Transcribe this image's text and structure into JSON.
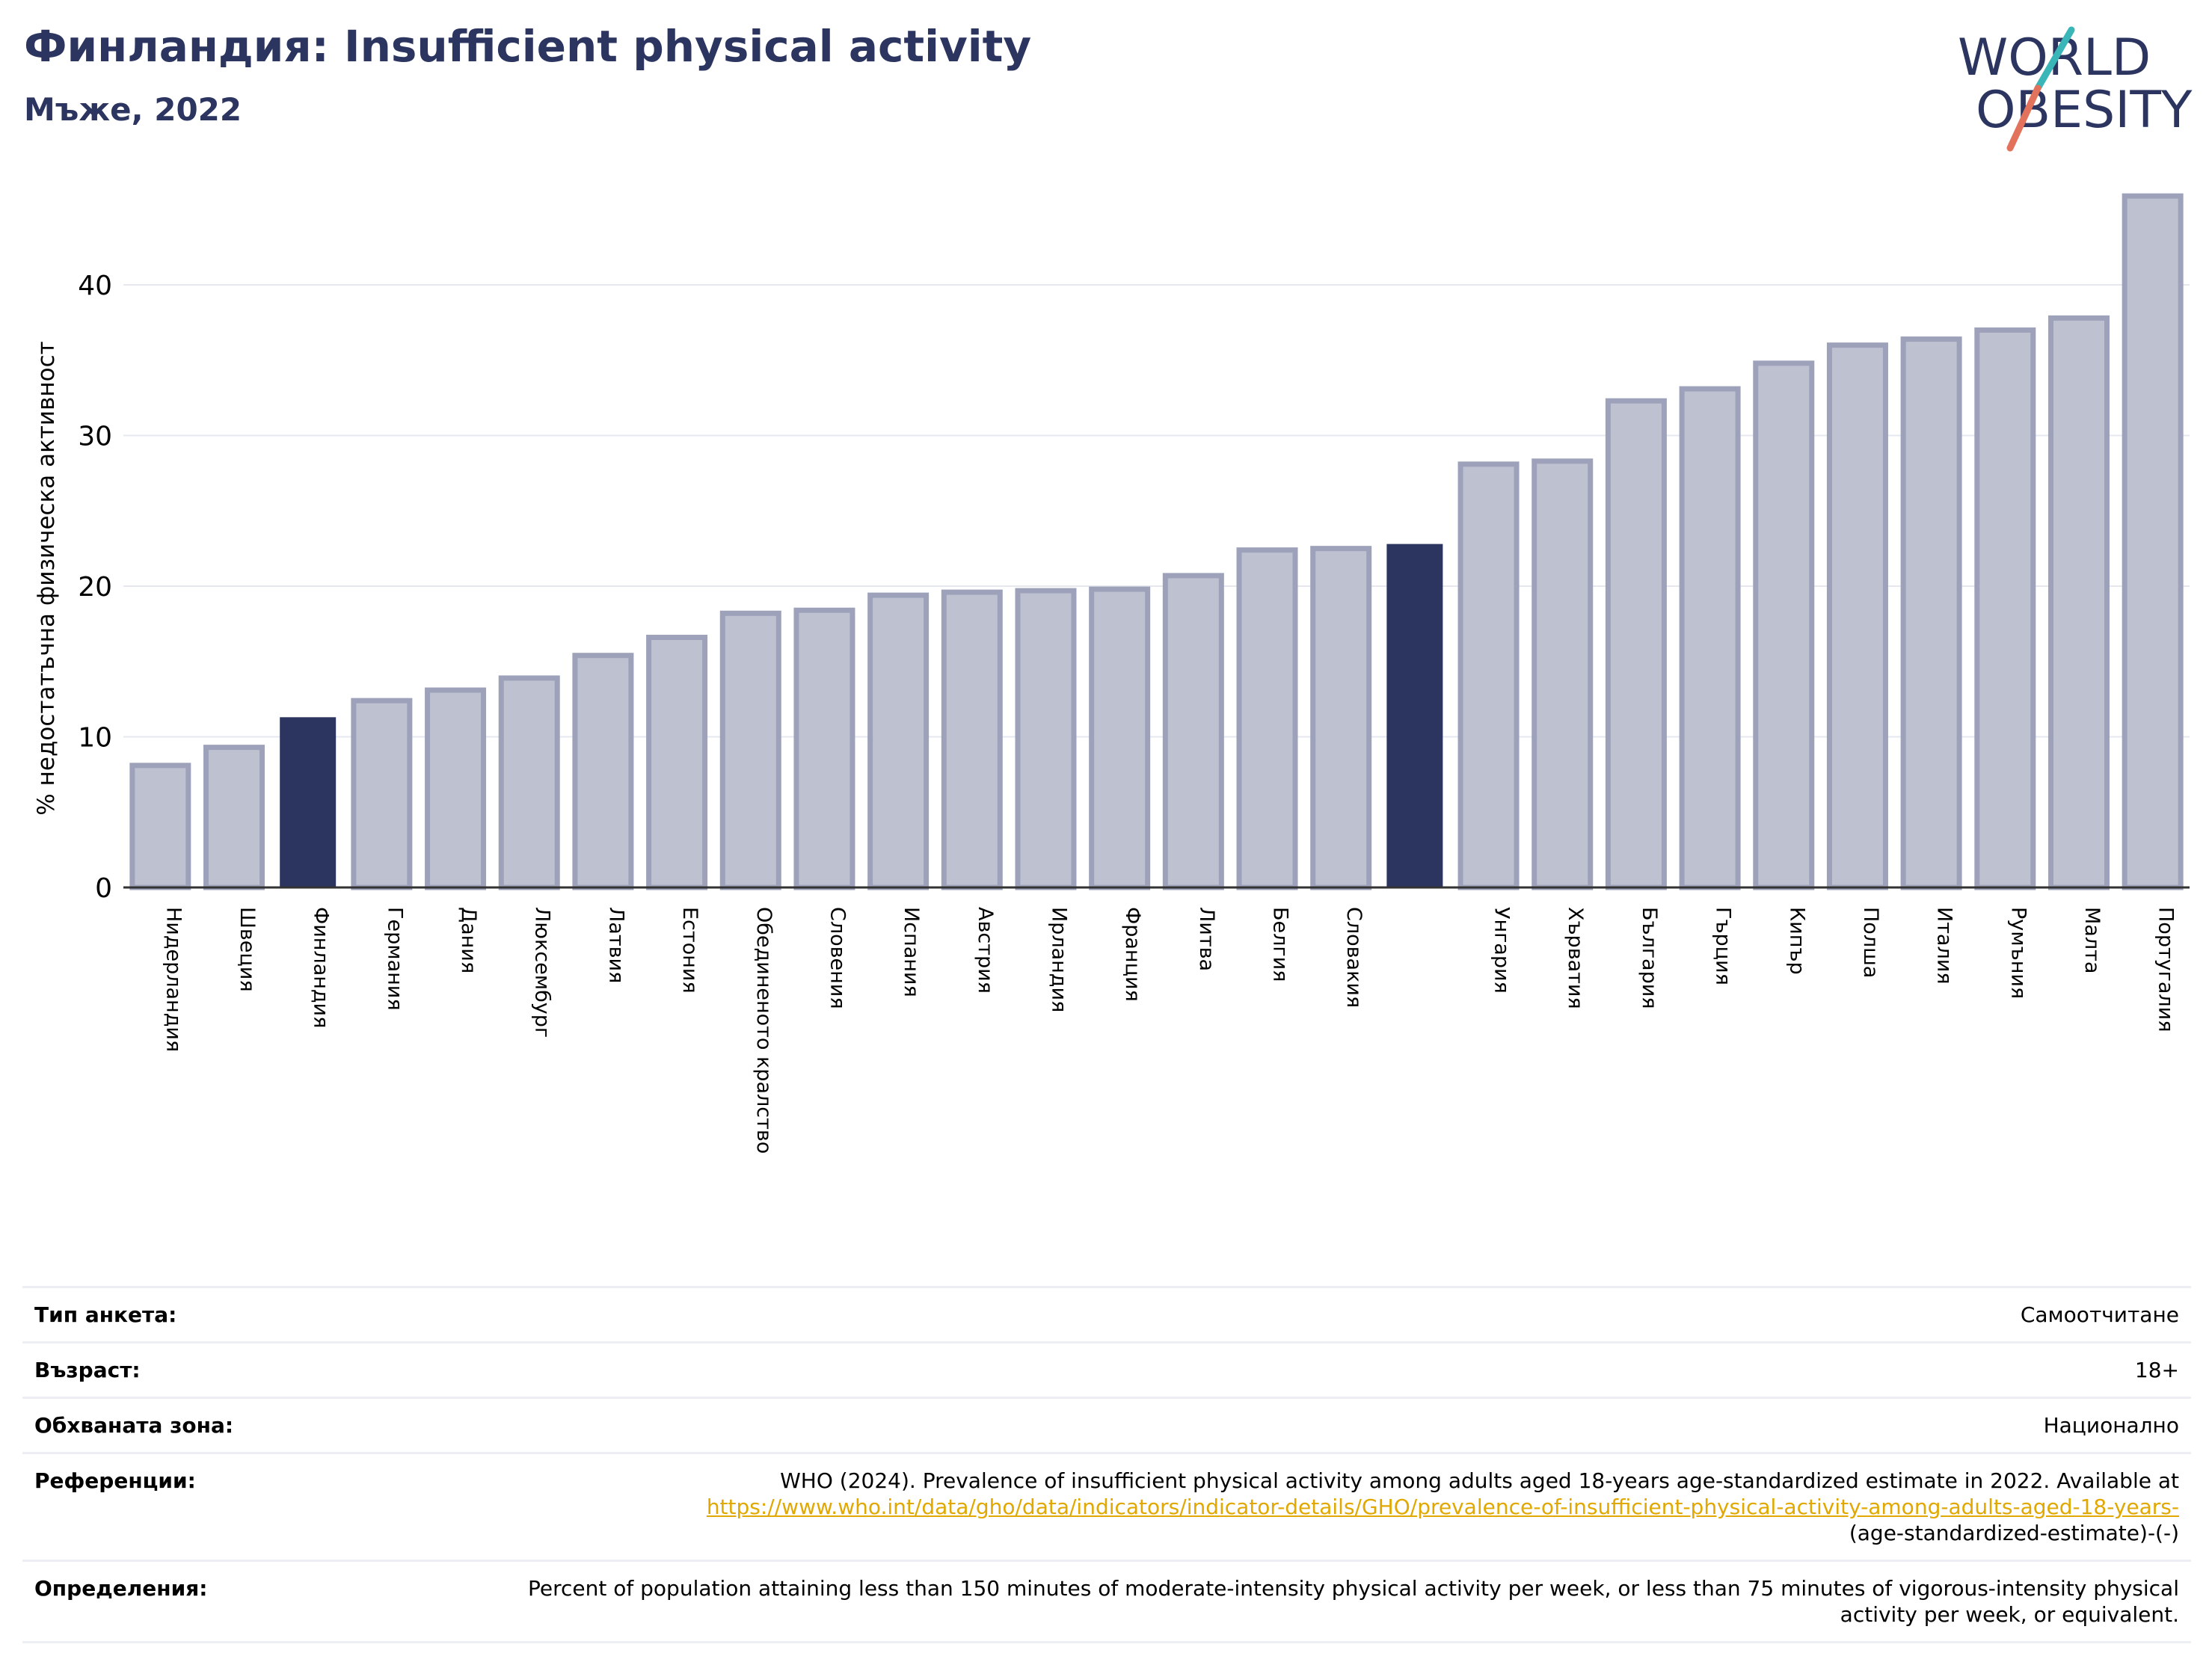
{
  "header": {
    "title": "Финландия: Insufficient physical activity",
    "subtitle": "Мъже, 2022"
  },
  "logo": {
    "line1": "WORLD",
    "line2": "OBESITY"
  },
  "colors": {
    "highlight": "#2b3560",
    "bar_fill": "#bec1d0",
    "bar_stroke": "#9da2ba",
    "grid": "#e6e8ef",
    "link": "#e0a800",
    "logo_teal": "#3ab5b8",
    "logo_red": "#e2725b"
  },
  "chart_data": {
    "type": "bar",
    "title": "Финландия: Insufficient physical activity",
    "subtitle": "Мъже, 2022",
    "ylabel": "% недостатъчна физическа активност",
    "ylim": [
      0,
      47
    ],
    "yticks": [
      0,
      10,
      20,
      30,
      40
    ],
    "grid": true,
    "categories": [
      "Нидерландия",
      "Швеция",
      "Финландия",
      "Германия",
      "Дания",
      "Люксембург",
      "Латвия",
      "Естония",
      "Обединеното кралство",
      "Словения",
      "Испания",
      "Австрия",
      "Ирландия",
      "Франция",
      "Литва",
      "Белгия",
      "Словакия",
      "",
      "Унгария",
      "Хърватия",
      "България",
      "Гърция",
      "Кипър",
      "Полша",
      "Италия",
      "Румъния",
      "Малта",
      "Португалия"
    ],
    "values": [
      8.1,
      9.3,
      11.3,
      12.4,
      13.1,
      13.9,
      15.4,
      16.6,
      18.2,
      18.4,
      19.4,
      19.6,
      19.7,
      19.8,
      20.7,
      22.4,
      22.5,
      22.8,
      28.1,
      28.3,
      32.3,
      33.1,
      34.8,
      36.0,
      36.4,
      37.0,
      37.8,
      45.9
    ],
    "highlighted": [
      "Финландия",
      ""
    ]
  },
  "info": {
    "rows": [
      {
        "key": "Тип анкета:",
        "value": "Самоотчитане"
      },
      {
        "key": "Възраст:",
        "value": "18+"
      },
      {
        "key": "Обхваната зона:",
        "value": "Национално"
      },
      {
        "key": "Референции:",
        "value": "WHO (2024). Prevalence of insufficient physical activity among adults aged 18-years age-standardized estimate in 2022. Available at",
        "link": "https://www.who.int/data/gho/data/indicators/indicator-details/GHO/prevalence-of-insufficient-physical-activity-among-adults-aged-18-years-",
        "value_after": "(age-standardized-estimate)-(-)"
      },
      {
        "key": "Определения:",
        "value": "Percent of population attaining less than 150 minutes of moderate-intensity physical activity per week, or less than 75 minutes of vigorous-intensity physical activity per week, or equivalent."
      }
    ]
  }
}
